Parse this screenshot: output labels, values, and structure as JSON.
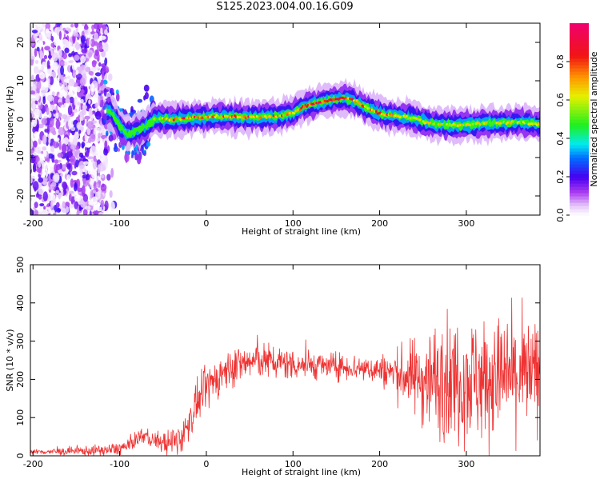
{
  "title": "S125.2023.004.00.16.G09",
  "chart_data": [
    {
      "type": "heatmap",
      "xlabel": "Height of straight line (km)",
      "ylabel": "Frequency (Hz)",
      "xlim": [
        -203,
        385
      ],
      "ylim": [
        -25,
        25
      ],
      "xticks": [
        -200,
        -100,
        0,
        100,
        200,
        300
      ],
      "yticks": [
        -20,
        -10,
        0,
        10,
        20
      ],
      "colorbar": {
        "label": "Normalized spectral amplitude",
        "range": [
          0,
          1
        ],
        "ticks": [
          0.0,
          0.2,
          0.4,
          0.6,
          0.8
        ]
      },
      "ridge": {
        "x": [
          -110,
          -100,
          -90,
          -80,
          -70,
          -60,
          -40,
          -20,
          0,
          20,
          40,
          60,
          80,
          100,
          110,
          120,
          130,
          140,
          150,
          160,
          170,
          180,
          200,
          220,
          240,
          260,
          280,
          300,
          320,
          340,
          360,
          380
        ],
        "y": [
          2,
          -2,
          -4,
          -3,
          -2,
          0,
          0,
          0.3,
          0.5,
          0.7,
          0.5,
          0.5,
          0.8,
          1.5,
          3,
          3.8,
          4.3,
          4.8,
          5.2,
          5.5,
          5,
          3.5,
          1.5,
          0.8,
          0.2,
          -1.2,
          -1.5,
          -1.5,
          -1,
          -1,
          -0.8,
          -1.2
        ]
      },
      "grid": false
    },
    {
      "type": "line",
      "xlabel": "Height of straight line (km)",
      "ylabel": "SNR (10 * v/v)",
      "xlim": [
        -203,
        385
      ],
      "ylim": [
        0,
        500
      ],
      "xticks": [
        -200,
        -100,
        0,
        100,
        200,
        300
      ],
      "yticks": [
        0,
        100,
        200,
        300,
        400,
        500
      ],
      "color": "#ee3333",
      "trend": {
        "x": [
          -203,
          -150,
          -110,
          -90,
          -75,
          -60,
          -40,
          -25,
          -20,
          -10,
          0,
          10,
          30,
          60,
          100,
          140,
          180,
          200,
          220,
          240,
          260,
          280,
          300,
          320,
          340,
          360,
          385
        ],
        "y": [
          10,
          12,
          15,
          25,
          55,
          40,
          30,
          60,
          90,
          140,
          175,
          200,
          235,
          250,
          240,
          235,
          230,
          225,
          215,
          205,
          200,
          200,
          205,
          200,
          205,
          210,
          210
        ]
      },
      "noise_amplitude": {
        "x": [
          -203,
          -60,
          -30,
          0,
          50,
          150,
          200,
          230,
          260,
          300,
          340,
          385
        ],
        "y": [
          5,
          20,
          40,
          50,
          45,
          30,
          35,
          70,
          130,
          150,
          140,
          130
        ]
      },
      "grid": false
    }
  ]
}
